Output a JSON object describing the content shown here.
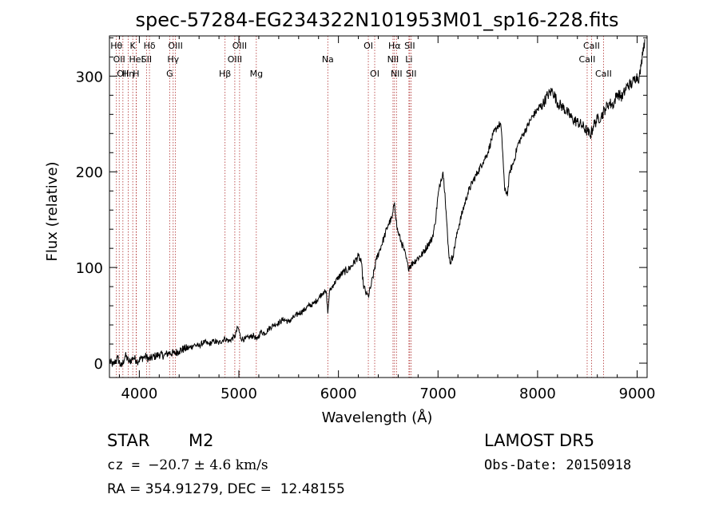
{
  "chart_data": {
    "type": "line",
    "title": "spec-57284-EG234322N101953M01_sp16-228.fits",
    "xlabel": "Wavelength (Å)",
    "ylabel": "Flux (relative)",
    "xlim": [
      3700,
      9100
    ],
    "ylim": [
      -15,
      342
    ],
    "xticks": [
      4000,
      5000,
      6000,
      7000,
      8000,
      9000
    ],
    "yticks": [
      0,
      100,
      200,
      300
    ],
    "grid": false,
    "line_color": "#000000",
    "marker_color": "#b03030",
    "series": [
      {
        "values": [
          [
            3700,
            2
          ],
          [
            3740,
            -2
          ],
          [
            3780,
            6
          ],
          [
            3820,
            -4
          ],
          [
            3860,
            8
          ],
          [
            3900,
            1
          ],
          [
            3940,
            6
          ],
          [
            3980,
            2
          ],
          [
            4020,
            5
          ],
          [
            4060,
            7
          ],
          [
            4100,
            4
          ],
          [
            4150,
            7
          ],
          [
            4200,
            9
          ],
          [
            4250,
            8
          ],
          [
            4300,
            11
          ],
          [
            4350,
            10
          ],
          [
            4400,
            13
          ],
          [
            4450,
            15
          ],
          [
            4500,
            16
          ],
          [
            4550,
            19
          ],
          [
            4600,
            18
          ],
          [
            4650,
            22
          ],
          [
            4700,
            20
          ],
          [
            4750,
            23
          ],
          [
            4800,
            21
          ],
          [
            4860,
            26
          ],
          [
            4900,
            23
          ],
          [
            4960,
            28
          ],
          [
            4990,
            38
          ],
          [
            5020,
            26
          ],
          [
            5060,
            25
          ],
          [
            5100,
            27
          ],
          [
            5150,
            29
          ],
          [
            5180,
            24
          ],
          [
            5220,
            33
          ],
          [
            5260,
            31
          ],
          [
            5300,
            36
          ],
          [
            5350,
            40
          ],
          [
            5400,
            42
          ],
          [
            5450,
            46
          ],
          [
            5500,
            43
          ],
          [
            5550,
            48
          ],
          [
            5600,
            52
          ],
          [
            5650,
            55
          ],
          [
            5700,
            60
          ],
          [
            5750,
            62
          ],
          [
            5800,
            68
          ],
          [
            5850,
            75
          ],
          [
            5880,
            73
          ],
          [
            5893,
            52
          ],
          [
            5910,
            75
          ],
          [
            5950,
            82
          ],
          [
            6000,
            90
          ],
          [
            6050,
            95
          ],
          [
            6100,
            98
          ],
          [
            6150,
            104
          ],
          [
            6200,
            112
          ],
          [
            6230,
            105
          ],
          [
            6250,
            82
          ],
          [
            6280,
            72
          ],
          [
            6300,
            70
          ],
          [
            6330,
            82
          ],
          [
            6380,
            108
          ],
          [
            6420,
            120
          ],
          [
            6460,
            132
          ],
          [
            6500,
            145
          ],
          [
            6540,
            152
          ],
          [
            6563,
            168
          ],
          [
            6590,
            140
          ],
          [
            6620,
            130
          ],
          [
            6660,
            118
          ],
          [
            6700,
            100
          ],
          [
            6750,
            105
          ],
          [
            6800,
            110
          ],
          [
            6850,
            115
          ],
          [
            6900,
            124
          ],
          [
            6940,
            130
          ],
          [
            6970,
            145
          ],
          [
            7000,
            175
          ],
          [
            7030,
            192
          ],
          [
            7050,
            200
          ],
          [
            7070,
            178
          ],
          [
            7100,
            125
          ],
          [
            7120,
            105
          ],
          [
            7150,
            112
          ],
          [
            7200,
            140
          ],
          [
            7250,
            160
          ],
          [
            7300,
            178
          ],
          [
            7350,
            190
          ],
          [
            7400,
            200
          ],
          [
            7450,
            210
          ],
          [
            7500,
            220
          ],
          [
            7550,
            238
          ],
          [
            7600,
            248
          ],
          [
            7630,
            250
          ],
          [
            7650,
            220
          ],
          [
            7670,
            180
          ],
          [
            7700,
            178
          ],
          [
            7720,
            200
          ],
          [
            7760,
            210
          ],
          [
            7800,
            228
          ],
          [
            7850,
            238
          ],
          [
            7900,
            248
          ],
          [
            7950,
            258
          ],
          [
            8000,
            265
          ],
          [
            8050,
            270
          ],
          [
            8100,
            280
          ],
          [
            8150,
            285
          ],
          [
            8200,
            272
          ],
          [
            8250,
            268
          ],
          [
            8300,
            262
          ],
          [
            8350,
            255
          ],
          [
            8400,
            252
          ],
          [
            8450,
            248
          ],
          [
            8500,
            242
          ],
          [
            8530,
            238
          ],
          [
            8560,
            248
          ],
          [
            8600,
            255
          ],
          [
            8640,
            258
          ],
          [
            8680,
            266
          ],
          [
            8720,
            272
          ],
          [
            8760,
            270
          ],
          [
            8800,
            282
          ],
          [
            8850,
            278
          ],
          [
            8900,
            290
          ],
          [
            8950,
            292
          ],
          [
            8990,
            300
          ],
          [
            9020,
            298
          ],
          [
            9040,
            310
          ],
          [
            9060,
            330
          ],
          [
            9080,
            338
          ]
        ]
      }
    ],
    "lines": [
      {
        "x": 3770,
        "label": "Hθ",
        "row": 0
      },
      {
        "x": 3798,
        "label": "OII",
        "row": 1
      },
      {
        "x": 3835,
        "label": "OII",
        "row": 2
      },
      {
        "x": 3889,
        "label": "Hη",
        "row": 2
      },
      {
        "x": 3934,
        "label": "K",
        "row": 0
      },
      {
        "x": 3968,
        "label": "H",
        "row": 2
      },
      {
        "x": 3970,
        "label": "HeI",
        "row": 1
      },
      {
        "x": 4072,
        "label": "SII",
        "row": 1
      },
      {
        "x": 4102,
        "label": "Hδ",
        "row": 0
      },
      {
        "x": 4305,
        "label": "G",
        "row": 2
      },
      {
        "x": 4340,
        "label": "Hγ",
        "row": 1
      },
      {
        "x": 4363,
        "label": "OIII",
        "row": 0
      },
      {
        "x": 4861,
        "label": "Hβ",
        "row": 2
      },
      {
        "x": 4959,
        "label": "OIII",
        "row": 1
      },
      {
        "x": 5007,
        "label": "OIII",
        "row": 0
      },
      {
        "x": 5175,
        "label": "Mg",
        "row": 2
      },
      {
        "x": 5893,
        "label": "Na",
        "row": 1
      },
      {
        "x": 6300,
        "label": "OI",
        "row": 0
      },
      {
        "x": 6364,
        "label": "OI",
        "row": 2
      },
      {
        "x": 6548,
        "label": "NII",
        "row": 1
      },
      {
        "x": 6563,
        "label": "Hα",
        "row": 0
      },
      {
        "x": 6583,
        "label": "NII",
        "row": 2
      },
      {
        "x": 6708,
        "label": "Li",
        "row": 1
      },
      {
        "x": 6716,
        "label": "SII",
        "row": 0
      },
      {
        "x": 6731,
        "label": "SII",
        "row": 2
      },
      {
        "x": 8498,
        "label": "CaII",
        "row": 1
      },
      {
        "x": 8542,
        "label": "CaII",
        "row": 0
      },
      {
        "x": 8662,
        "label": "CaII",
        "row": 2
      }
    ]
  },
  "info": {
    "class": "STAR",
    "subclass": "M2",
    "survey": "LAMOST DR5",
    "cz_label": "cz = ",
    "cz_value": "−20.7 ± 4.6 km/s",
    "obs_date": "Obs-Date: 20150918",
    "radec": "RA = 354.91279, DEC =  12.48155"
  }
}
